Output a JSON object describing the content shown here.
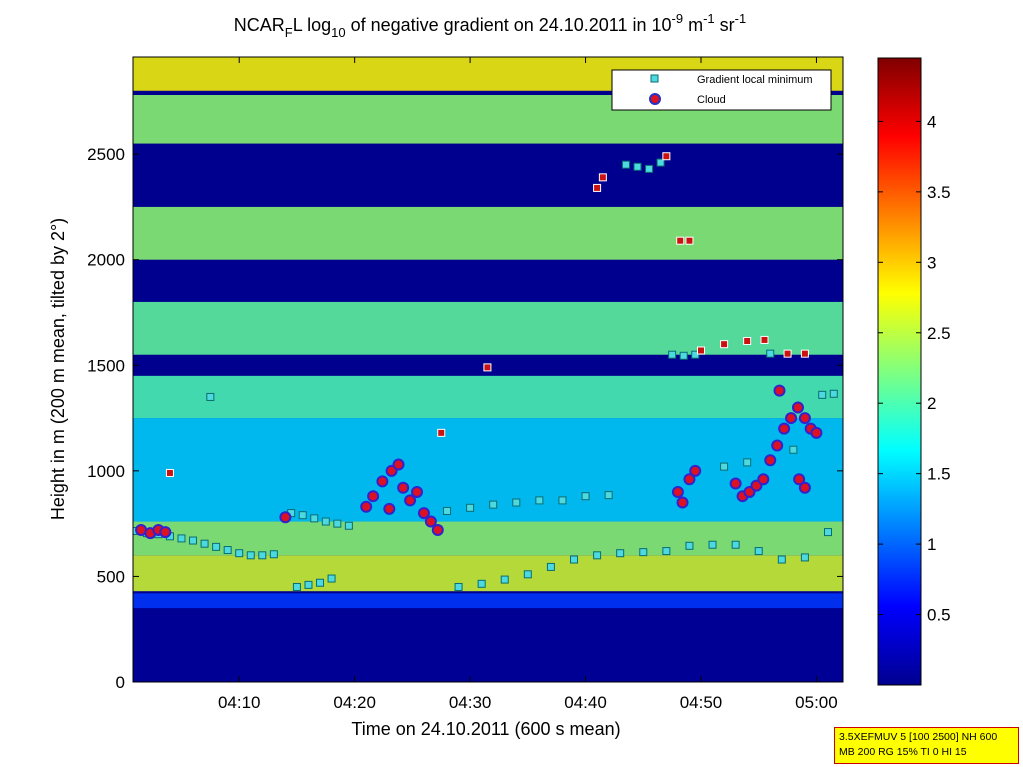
{
  "chart_data": {
    "type": "heatmap",
    "title_parts": {
      "pre": "NCAR",
      "sub1": "F",
      "mid": "L log",
      "sub2": "10",
      "post": " of negative gradient on 24.10.2011 in 10",
      "sup1": "-9",
      "post2": " m",
      "sup2": "-1",
      "post3": " sr",
      "sup3": "-1"
    },
    "xlabel": "Time on 24.10.2011 (600 s mean)",
    "ylabel": "Height in m (200 m mean, tilted by 2°)",
    "x_range_minutes": [
      0.8,
      62.3
    ],
    "x_ticks": [
      {
        "label": "04:10",
        "value": 10
      },
      {
        "label": "04:20",
        "value": 20
      },
      {
        "label": "04:30",
        "value": 30
      },
      {
        "label": "04:40",
        "value": 40
      },
      {
        "label": "04:50",
        "value": 50
      },
      {
        "label": "05:00",
        "value": 60
      }
    ],
    "ylim": [
      0,
      2960
    ],
    "y_ticks": [
      0,
      500,
      1000,
      1500,
      2000,
      2500
    ],
    "colorbar": {
      "range": [
        0,
        4.45
      ],
      "ticks": [
        0.5,
        1,
        1.5,
        2,
        2.5,
        3,
        3.5,
        4
      ],
      "colormap": "jet"
    },
    "legend": {
      "position": "top-right",
      "entries": [
        {
          "label": "Gradient local minimum",
          "marker": "square",
          "color": "#4dd9e0"
        },
        {
          "label": "Cloud",
          "marker": "circle",
          "color": "#dd1122",
          "edge": "#2233cc"
        }
      ]
    },
    "layers": [
      {
        "y0": 0,
        "y1": 350,
        "value": 0.1
      },
      {
        "y0": 350,
        "y1": 420,
        "value": 0.8
      },
      {
        "y0": 430,
        "y1": 600,
        "value": 2.6
      },
      {
        "y0": 600,
        "y1": 760,
        "value": 2.3
      },
      {
        "y0": 760,
        "y1": 1250,
        "value": 1.5
      },
      {
        "y0": 1250,
        "y1": 1450,
        "value": 2.0
      },
      {
        "y0": 1550,
        "y1": 1800,
        "value": 2.1
      },
      {
        "y0": 2000,
        "y1": 2250,
        "value": 2.3
      },
      {
        "y0": 2550,
        "y1": 2780,
        "value": 2.3
      },
      {
        "y0": 2800,
        "y1": 2960,
        "value": 2.8
      }
    ],
    "gradient_minima": [
      {
        "x": 1.0,
        "y": 715
      },
      {
        "x": 2.0,
        "y": 705
      },
      {
        "x": 3.0,
        "y": 700
      },
      {
        "x": 4.0,
        "y": 690
      },
      {
        "x": 5.0,
        "y": 680
      },
      {
        "x": 6.0,
        "y": 670
      },
      {
        "x": 7.0,
        "y": 655
      },
      {
        "x": 8.0,
        "y": 640
      },
      {
        "x": 9.0,
        "y": 625
      },
      {
        "x": 10.0,
        "y": 610
      },
      {
        "x": 11.0,
        "y": 600
      },
      {
        "x": 12.0,
        "y": 600
      },
      {
        "x": 13.0,
        "y": 605
      },
      {
        "x": 14.5,
        "y": 800
      },
      {
        "x": 15.5,
        "y": 790
      },
      {
        "x": 16.5,
        "y": 775
      },
      {
        "x": 17.5,
        "y": 760
      },
      {
        "x": 18.5,
        "y": 750
      },
      {
        "x": 19.5,
        "y": 740
      },
      {
        "x": 15.0,
        "y": 450
      },
      {
        "x": 16.0,
        "y": 460
      },
      {
        "x": 17.0,
        "y": 470
      },
      {
        "x": 18.0,
        "y": 490
      },
      {
        "x": 29.0,
        "y": 450
      },
      {
        "x": 31.0,
        "y": 465
      },
      {
        "x": 33.0,
        "y": 485
      },
      {
        "x": 35.0,
        "y": 510
      },
      {
        "x": 37.0,
        "y": 545
      },
      {
        "x": 39.0,
        "y": 580
      },
      {
        "x": 41.0,
        "y": 600
      },
      {
        "x": 43.0,
        "y": 610
      },
      {
        "x": 45.0,
        "y": 615
      },
      {
        "x": 47.0,
        "y": 620
      },
      {
        "x": 49.0,
        "y": 645
      },
      {
        "x": 51.0,
        "y": 650
      },
      {
        "x": 53.0,
        "y": 650
      },
      {
        "x": 55.0,
        "y": 620
      },
      {
        "x": 57.0,
        "y": 580
      },
      {
        "x": 59.0,
        "y": 590
      },
      {
        "x": 61.0,
        "y": 710
      },
      {
        "x": 28.0,
        "y": 810
      },
      {
        "x": 30.0,
        "y": 825
      },
      {
        "x": 32.0,
        "y": 840
      },
      {
        "x": 34.0,
        "y": 850
      },
      {
        "x": 36.0,
        "y": 860
      },
      {
        "x": 38.0,
        "y": 860
      },
      {
        "x": 40.0,
        "y": 880
      },
      {
        "x": 42.0,
        "y": 885
      },
      {
        "x": 43.5,
        "y": 2450
      },
      {
        "x": 44.5,
        "y": 2440
      },
      {
        "x": 45.5,
        "y": 2430
      },
      {
        "x": 46.5,
        "y": 2460
      },
      {
        "x": 47.5,
        "y": 1550
      },
      {
        "x": 48.5,
        "y": 1545
      },
      {
        "x": 49.5,
        "y": 1550
      },
      {
        "x": 56.0,
        "y": 1555
      },
      {
        "x": 7.5,
        "y": 1350
      },
      {
        "x": 60.5,
        "y": 1360
      },
      {
        "x": 61.5,
        "y": 1365
      },
      {
        "x": 52.0,
        "y": 1020
      },
      {
        "x": 54.0,
        "y": 1040
      },
      {
        "x": 58.0,
        "y": 1100
      }
    ],
    "red_squares": [
      {
        "x": 4.0,
        "y": 990
      },
      {
        "x": 27.5,
        "y": 1180
      },
      {
        "x": 31.5,
        "y": 1490
      },
      {
        "x": 41.0,
        "y": 2340
      },
      {
        "x": 41.5,
        "y": 2390
      },
      {
        "x": 48.2,
        "y": 2090
      },
      {
        "x": 49.0,
        "y": 2090
      },
      {
        "x": 50.0,
        "y": 1570
      },
      {
        "x": 52.0,
        "y": 1600
      },
      {
        "x": 54.0,
        "y": 1615
      },
      {
        "x": 55.5,
        "y": 1620
      },
      {
        "x": 57.5,
        "y": 1555
      },
      {
        "x": 59.0,
        "y": 1555
      },
      {
        "x": 47.0,
        "y": 2490
      }
    ],
    "clouds": [
      {
        "x": 1.5,
        "y": 720
      },
      {
        "x": 2.3,
        "y": 705
      },
      {
        "x": 3.0,
        "y": 720
      },
      {
        "x": 3.6,
        "y": 710
      },
      {
        "x": 14.0,
        "y": 780
      },
      {
        "x": 21.0,
        "y": 830
      },
      {
        "x": 21.6,
        "y": 880
      },
      {
        "x": 22.4,
        "y": 950
      },
      {
        "x": 23.2,
        "y": 1000
      },
      {
        "x": 23.8,
        "y": 1030
      },
      {
        "x": 24.2,
        "y": 920
      },
      {
        "x": 24.8,
        "y": 860
      },
      {
        "x": 25.4,
        "y": 900
      },
      {
        "x": 26.0,
        "y": 800
      },
      {
        "x": 26.6,
        "y": 760
      },
      {
        "x": 27.2,
        "y": 720
      },
      {
        "x": 23.0,
        "y": 820
      },
      {
        "x": 48.0,
        "y": 900
      },
      {
        "x": 48.4,
        "y": 850
      },
      {
        "x": 49.0,
        "y": 960
      },
      {
        "x": 49.5,
        "y": 1000
      },
      {
        "x": 53.0,
        "y": 940
      },
      {
        "x": 53.6,
        "y": 880
      },
      {
        "x": 54.2,
        "y": 900
      },
      {
        "x": 54.8,
        "y": 930
      },
      {
        "x": 55.4,
        "y": 960
      },
      {
        "x": 56.0,
        "y": 1050
      },
      {
        "x": 56.6,
        "y": 1120
      },
      {
        "x": 57.2,
        "y": 1200
      },
      {
        "x": 57.8,
        "y": 1250
      },
      {
        "x": 58.4,
        "y": 1300
      },
      {
        "x": 59.0,
        "y": 1250
      },
      {
        "x": 59.5,
        "y": 1200
      },
      {
        "x": 60.0,
        "y": 1180
      },
      {
        "x": 58.5,
        "y": 960
      },
      {
        "x": 59.0,
        "y": 920
      },
      {
        "x": 56.8,
        "y": 1380
      }
    ]
  },
  "info_box": {
    "line1": "3.5XEFMUV 5 [100 2500] NH 600",
    "line2": "MB 200 RG 15% TI 0 HI 15"
  }
}
